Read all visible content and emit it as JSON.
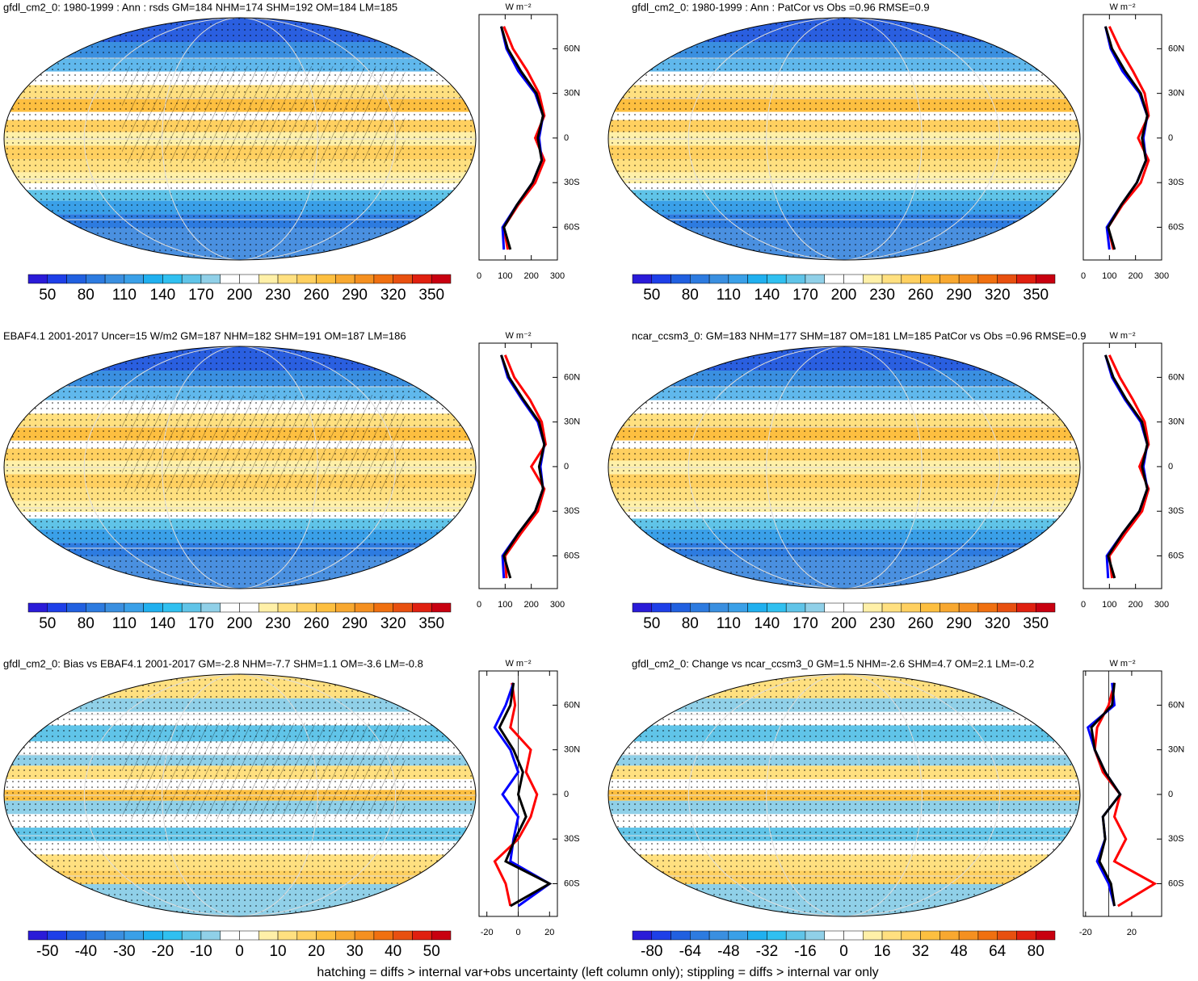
{
  "panels": [
    {
      "title": "gfdl_cm2_0: 1980-1999 : Ann : rsds GM=184 NHM=174 SHM=192 OM=184 LM=185",
      "colorbar": {
        "labels": [
          "50",
          "80",
          "110",
          "140",
          "170",
          "200",
          "230",
          "260",
          "290",
          "320",
          "350"
        ]
      },
      "profile": {
        "units": "W m⁻²",
        "xlim": [
          0,
          300
        ],
        "xticks": [
          0,
          100,
          200,
          300
        ],
        "ylim": [
          -82,
          83
        ],
        "yticks": [
          {
            "value": 60,
            "label": "60N"
          },
          {
            "value": 30,
            "label": "30N"
          },
          0,
          {
            "value": -30,
            "label": "30S"
          },
          {
            "value": -60,
            "label": "60S"
          }
        ],
        "lat": [
          -75,
          -60,
          -45,
          -30,
          -15,
          0,
          15,
          30,
          45,
          60,
          75
        ],
        "series": [
          {
            "color": "#ff0000",
            "values": [
              110,
              95,
              150,
              215,
              250,
              215,
              250,
              230,
              185,
              130,
              95
            ]
          },
          {
            "color": "#0000ff",
            "values": [
              95,
              90,
              145,
              205,
              240,
              230,
              245,
              215,
              150,
              105,
              85
            ]
          },
          {
            "color": "#000000",
            "values": [
              120,
              95,
              145,
              205,
              240,
              225,
              245,
              220,
              160,
              110,
              85
            ]
          }
        ]
      }
    },
    {
      "title": "gfdl_cm2_0: 1980-1999 : Ann : PatCor vs Obs =0.96 RMSE=0.9",
      "colorbar": {
        "labels": [
          "50",
          "80",
          "110",
          "140",
          "170",
          "200",
          "230",
          "260",
          "290",
          "320",
          "350"
        ]
      },
      "profile": {
        "units": "W m⁻²",
        "xlim": [
          0,
          300
        ],
        "xticks": [
          0,
          100,
          200,
          300
        ],
        "ylim": [
          -82,
          83
        ],
        "yticks": [
          {
            "value": 60,
            "label": "60N"
          },
          {
            "value": 30,
            "label": "30N"
          },
          0,
          {
            "value": -30,
            "label": "30S"
          },
          {
            "value": -60,
            "label": "60S"
          }
        ],
        "lat": [
          -75,
          -60,
          -45,
          -30,
          -15,
          0,
          15,
          30,
          45,
          60,
          75
        ],
        "series": [
          {
            "color": "#ff0000",
            "values": [
              115,
              95,
              150,
              220,
              250,
              210,
              250,
              235,
              190,
              140,
              100
            ]
          },
          {
            "color": "#0000ff",
            "values": [
              100,
              90,
              145,
              205,
              240,
              230,
              245,
              215,
              150,
              105,
              85
            ]
          },
          {
            "color": "#000000",
            "values": [
              120,
              95,
              145,
              205,
              240,
              225,
              245,
              220,
              160,
              110,
              85
            ]
          }
        ]
      }
    },
    {
      "title": "EBAF4.1 2001-2017 Uncer=15 W/m2 GM=187 NHM=182 SHM=191 OM=187 LM=186",
      "colorbar": {
        "labels": [
          "50",
          "80",
          "110",
          "140",
          "170",
          "200",
          "230",
          "260",
          "290",
          "320",
          "350"
        ]
      },
      "profile": {
        "units": "W m⁻²",
        "xlim": [
          0,
          300
        ],
        "xticks": [
          0,
          100,
          200,
          300
        ],
        "ylim": [
          -82,
          83
        ],
        "yticks": [
          {
            "value": 60,
            "label": "60N"
          },
          {
            "value": 30,
            "label": "30N"
          },
          0,
          {
            "value": -30,
            "label": "30S"
          },
          {
            "value": -60,
            "label": "60S"
          }
        ],
        "lat": [
          -75,
          -60,
          -45,
          -30,
          -15,
          0,
          15,
          30,
          45,
          60,
          75
        ],
        "series": [
          {
            "color": "#ff0000",
            "values": [
              105,
              100,
              160,
              225,
              250,
              200,
              255,
              240,
              195,
              135,
              100
            ]
          },
          {
            "color": "#0000ff",
            "values": [
              95,
              90,
              150,
              215,
              245,
              235,
              250,
              225,
              165,
              110,
              85
            ]
          },
          {
            "color": "#000000",
            "values": [
              120,
              95,
              150,
              215,
              245,
              230,
              250,
              230,
              170,
              115,
              85
            ]
          }
        ]
      }
    },
    {
      "title": "ncar_ccsm3_0: GM=183 NHM=177 SHM=187 OM=181 LM=185 PatCor vs Obs =0.96 RMSE=0.9",
      "colorbar": {
        "labels": [
          "50",
          "80",
          "110",
          "140",
          "170",
          "200",
          "230",
          "260",
          "290",
          "320",
          "350"
        ]
      },
      "profile": {
        "units": "W m⁻²",
        "xlim": [
          0,
          300
        ],
        "xticks": [
          0,
          100,
          200,
          300
        ],
        "ylim": [
          -82,
          83
        ],
        "yticks": [
          {
            "value": 60,
            "label": "60N"
          },
          {
            "value": 30,
            "label": "30N"
          },
          0,
          {
            "value": -30,
            "label": "30S"
          },
          {
            "value": -60,
            "label": "60S"
          }
        ],
        "lat": [
          -75,
          -60,
          -45,
          -30,
          -15,
          0,
          15,
          30,
          45,
          60,
          75
        ],
        "series": [
          {
            "color": "#ff0000",
            "values": [
              110,
              100,
              160,
              225,
              250,
              215,
              250,
              235,
              190,
              140,
              100
            ]
          },
          {
            "color": "#0000ff",
            "values": [
              95,
              90,
              150,
              215,
              245,
              230,
              245,
              220,
              160,
              110,
              85
            ]
          },
          {
            "color": "#000000",
            "values": [
              120,
              95,
              150,
              215,
              245,
              225,
              245,
              225,
              165,
              115,
              85
            ]
          }
        ]
      }
    },
    {
      "title": "gfdl_cm2_0: Bias vs EBAF4.1 2001-2017 GM=-2.8 NHM=-7.7 SHM=1.1 OM=-3.6 LM=-0.8",
      "colorbar": {
        "labels": [
          "-50",
          "-40",
          "-30",
          "-20",
          "-10",
          "0",
          "10",
          "20",
          "30",
          "40",
          "50"
        ]
      },
      "profile": {
        "units": "W m⁻²",
        "xlim": [
          -25,
          25
        ],
        "xticks": [
          -20,
          0,
          20
        ],
        "ylim": [
          -82,
          83
        ],
        "yticks": [
          {
            "value": 60,
            "label": "60N"
          },
          {
            "value": 30,
            "label": "30N"
          },
          0,
          {
            "value": -30,
            "label": "30S"
          },
          {
            "value": -60,
            "label": "60S"
          }
        ],
        "zero_line": true,
        "lat": [
          -75,
          -60,
          -45,
          -30,
          -15,
          0,
          15,
          30,
          45,
          60,
          75
        ],
        "series": [
          {
            "color": "#ff0000",
            "values": [
              -5,
              -8,
              -15,
              0,
              8,
              12,
              5,
              8,
              -5,
              -2,
              -4
            ]
          },
          {
            "color": "#0000ff",
            "values": [
              0,
              20,
              -5,
              -3,
              0,
              -10,
              0,
              -5,
              -15,
              -8,
              -3
            ]
          },
          {
            "color": "#000000",
            "values": [
              -5,
              20,
              -8,
              -2,
              5,
              0,
              3,
              -3,
              -12,
              -5,
              -3
            ]
          }
        ]
      }
    },
    {
      "title": "gfdl_cm2_0: Change vs ncar_ccsm3_0 GM=1.5 NHM=-2.6 SHM=4.7 OM=2.1 LM=-0.2",
      "colorbar": {
        "labels": [
          "-80",
          "-64",
          "-48",
          "-32",
          "-16",
          "0",
          "16",
          "32",
          "48",
          "64",
          "80"
        ]
      },
      "profile": {
        "units": "W m⁻²",
        "xlim": [
          -22,
          46
        ],
        "xticks": [
          -20,
          20
        ],
        "ylim": [
          -82,
          83
        ],
        "yticks": [
          {
            "value": 60,
            "label": "60N"
          },
          {
            "value": 30,
            "label": "30N"
          },
          0,
          {
            "value": -30,
            "label": "30S"
          },
          {
            "value": -60,
            "label": "60S"
          }
        ],
        "zero_line": true,
        "lat": [
          -75,
          -60,
          -45,
          -30,
          -15,
          0,
          15,
          30,
          45,
          60,
          75
        ],
        "series": [
          {
            "color": "#ff0000",
            "values": [
              8,
              40,
              5,
              15,
              5,
              10,
              -5,
              -12,
              -10,
              0,
              5
            ]
          },
          {
            "color": "#0000ff",
            "values": [
              5,
              0,
              -10,
              -3,
              -5,
              10,
              -3,
              -12,
              -18,
              5,
              3
            ]
          },
          {
            "color": "#000000",
            "values": [
              5,
              2,
              -8,
              -3,
              -5,
              10,
              -3,
              -12,
              -15,
              3,
              5
            ]
          }
        ]
      }
    }
  ],
  "colorbar_colors": [
    "#2a1bd8",
    "#1e3fe8",
    "#2160e0",
    "#2d7be0",
    "#3a8fe0",
    "#3aa0e8",
    "#20b0ef",
    "#30c0f0",
    "#60c4e8",
    "#90d0e8",
    "#ffffff",
    "#ffffff",
    "#fff0a8",
    "#ffe080",
    "#ffd060",
    "#fdbf40",
    "#f8a830",
    "#f59020",
    "#f07010",
    "#e85010",
    "#e02010",
    "#c80010"
  ],
  "footer": "hatching = diffs > internal var+obs uncertainty (left column only); stippling = diffs > internal var only"
}
